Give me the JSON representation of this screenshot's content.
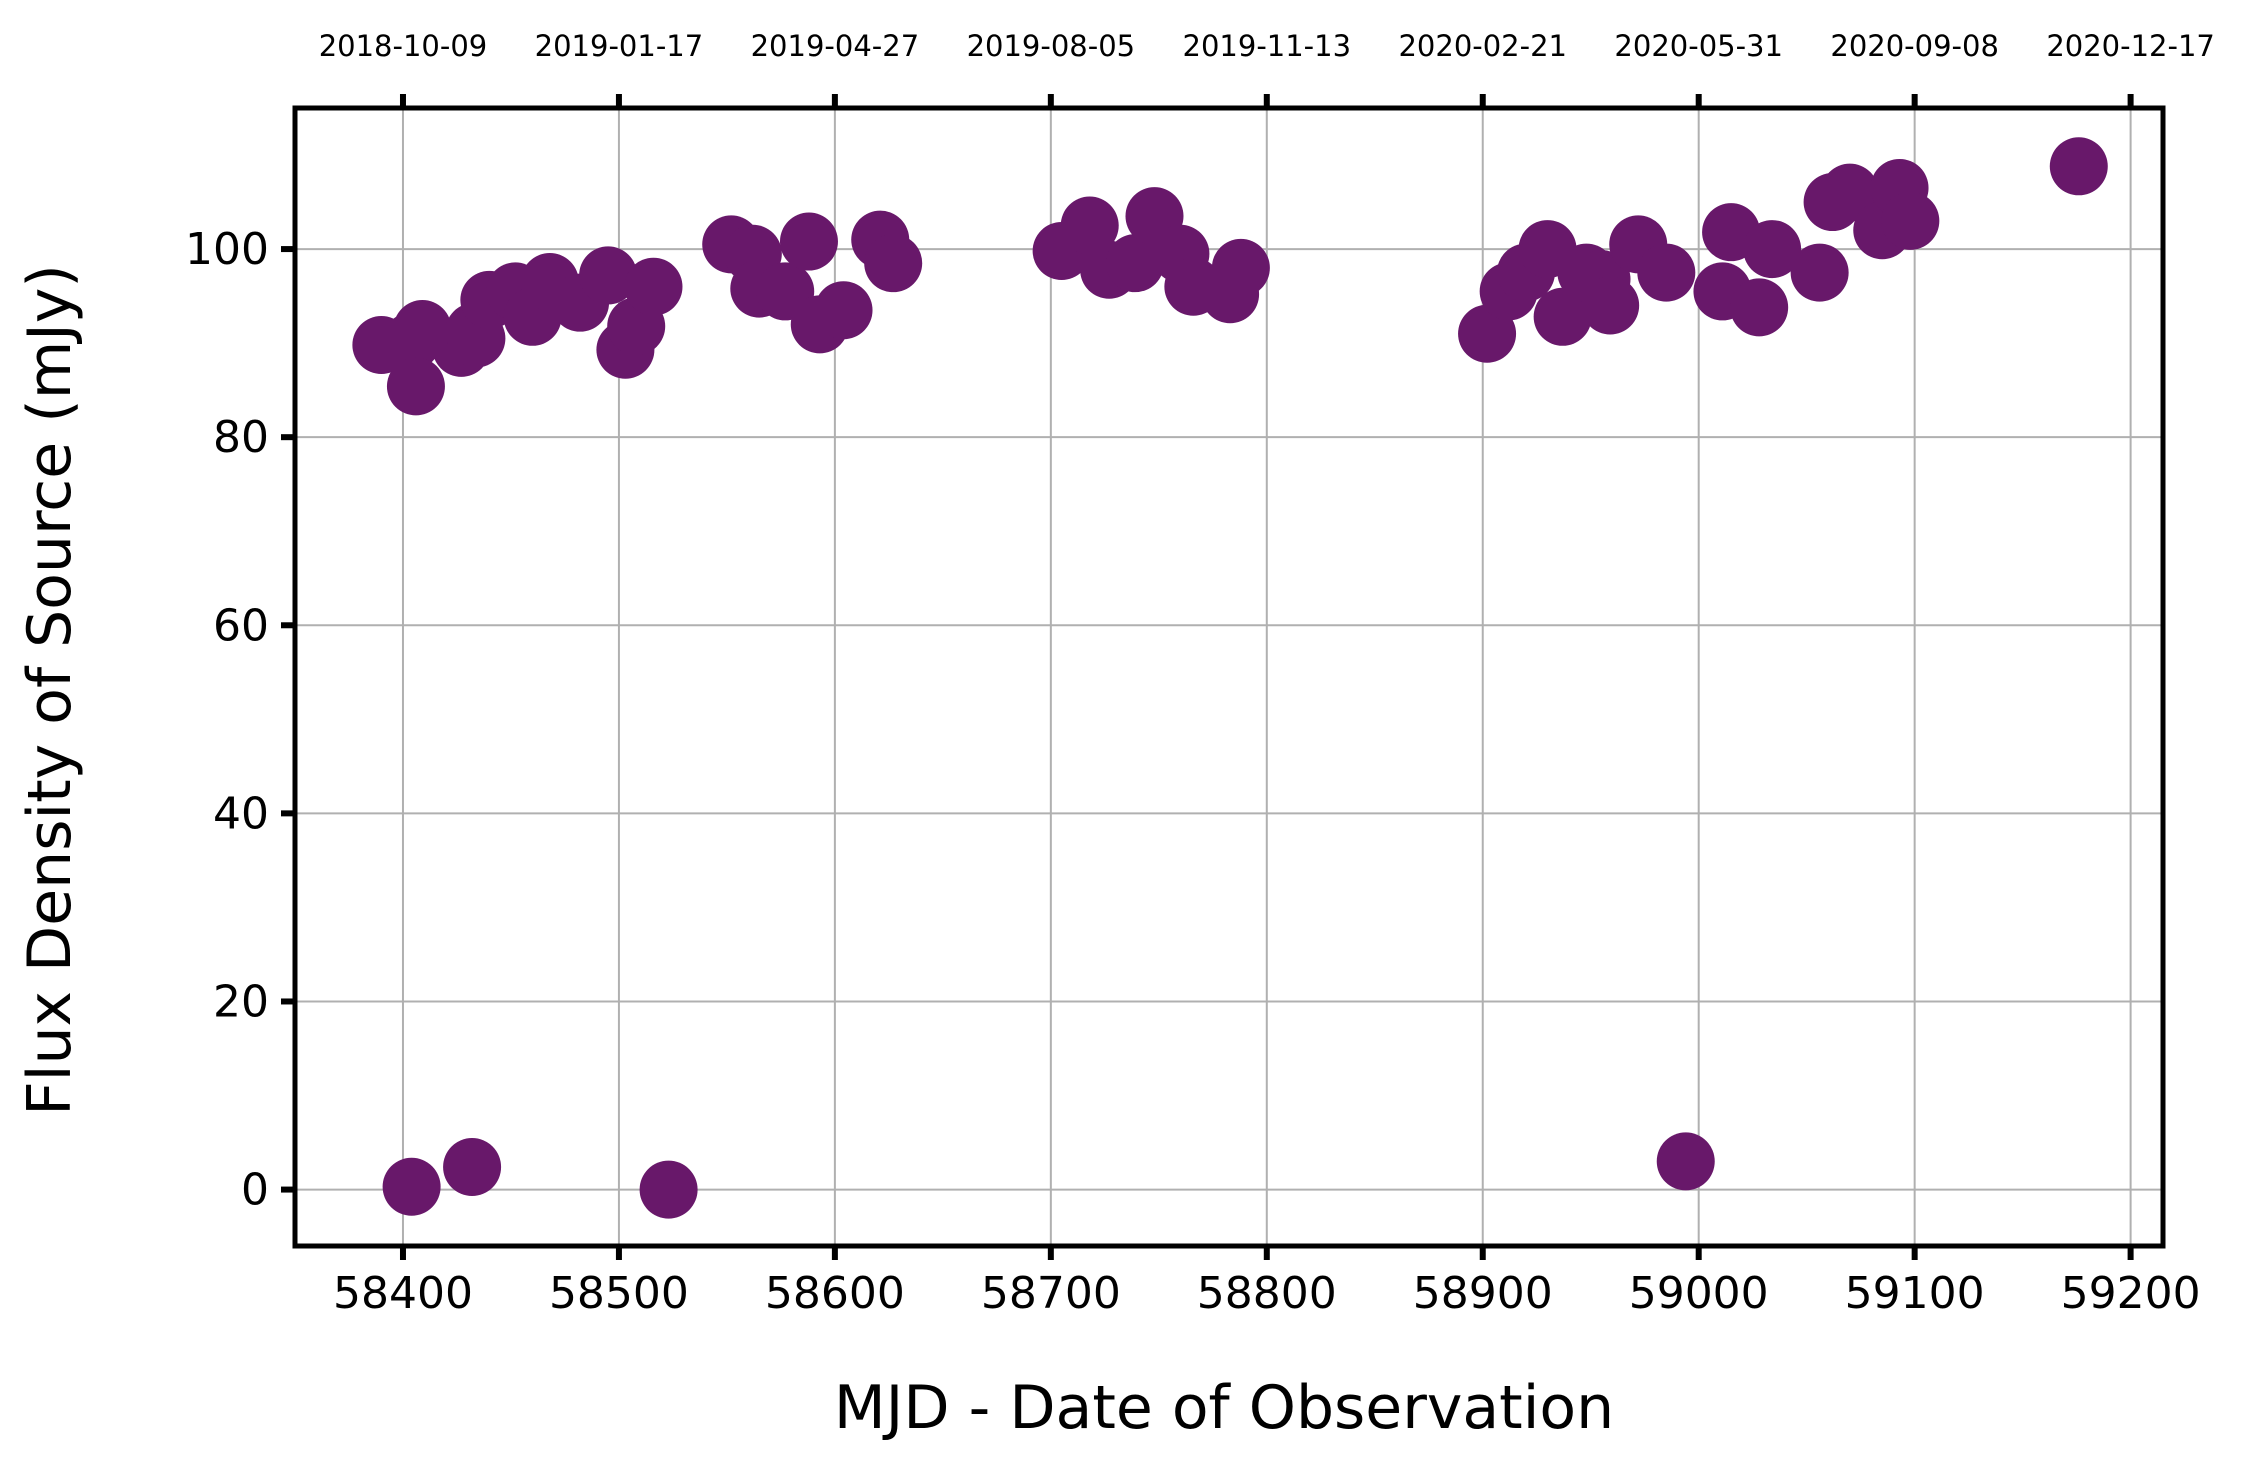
{
  "chart_data": {
    "type": "scatter",
    "title": "",
    "xlabel": "MJD - Date of Observation",
    "ylabel": "Flux Density of Source (mJy)",
    "xlim": [
      58350,
      59215
    ],
    "ylim": [
      -6,
      115
    ],
    "grid": true,
    "marker_color": "#68186a",
    "x_ticks": [
      58400,
      58500,
      58600,
      58700,
      58800,
      58900,
      59000,
      59100,
      59200
    ],
    "y_ticks": [
      0,
      20,
      40,
      60,
      80,
      100
    ],
    "top_axis": {
      "ticks": [
        58400,
        58500,
        58600,
        58700,
        58800,
        58900,
        59000,
        59100,
        59200
      ],
      "labels": [
        "2018-10-09",
        "2019-01-17",
        "2019-04-27",
        "2019-08-05",
        "2019-11-13",
        "2020-02-21",
        "2020-05-31",
        "2020-09-08",
        "2020-12-17"
      ]
    },
    "series": [
      {
        "x": [
          58390,
          58404,
          58406,
          58409,
          58427,
          58433,
          58434,
          58440,
          58452,
          58460,
          58468,
          58482,
          58495,
          58503,
          58508,
          58516,
          58404,
          58432,
          58523,
          58552,
          58562,
          58565,
          58577,
          58588,
          58593,
          58604,
          58621,
          58627,
          58705,
          58718,
          58727,
          58739,
          58748,
          58760,
          58766,
          58783,
          58788,
          58902,
          58912,
          58920,
          58930,
          58937,
          58948,
          58955,
          58959,
          58972,
          58985,
          59011,
          59015,
          59028,
          59034,
          59056,
          59062,
          59070,
          59085,
          59093,
          59098,
          58994,
          59176
        ],
        "y": [
          89.8,
          90.2,
          85.4,
          91.5,
          89.5,
          91.2,
          90.5,
          94.6,
          95.5,
          92.8,
          96.5,
          94.3,
          97.2,
          89.3,
          91.8,
          96.0,
          0.3,
          2.4,
          0.0,
          100.5,
          99.5,
          95.8,
          95.5,
          100.8,
          92.0,
          93.5,
          101.0,
          98.5,
          99.8,
          102.5,
          97.8,
          98.5,
          103.5,
          99.5,
          96.0,
          95.2,
          98.0,
          91.0,
          95.5,
          97.5,
          100.0,
          92.8,
          97.5,
          96.8,
          94.0,
          100.5,
          97.5,
          95.5,
          101.8,
          93.8,
          100.0,
          97.5,
          105.0,
          106.0,
          102.0,
          106.5,
          103.0,
          3.0,
          108.8
        ]
      }
    ]
  }
}
